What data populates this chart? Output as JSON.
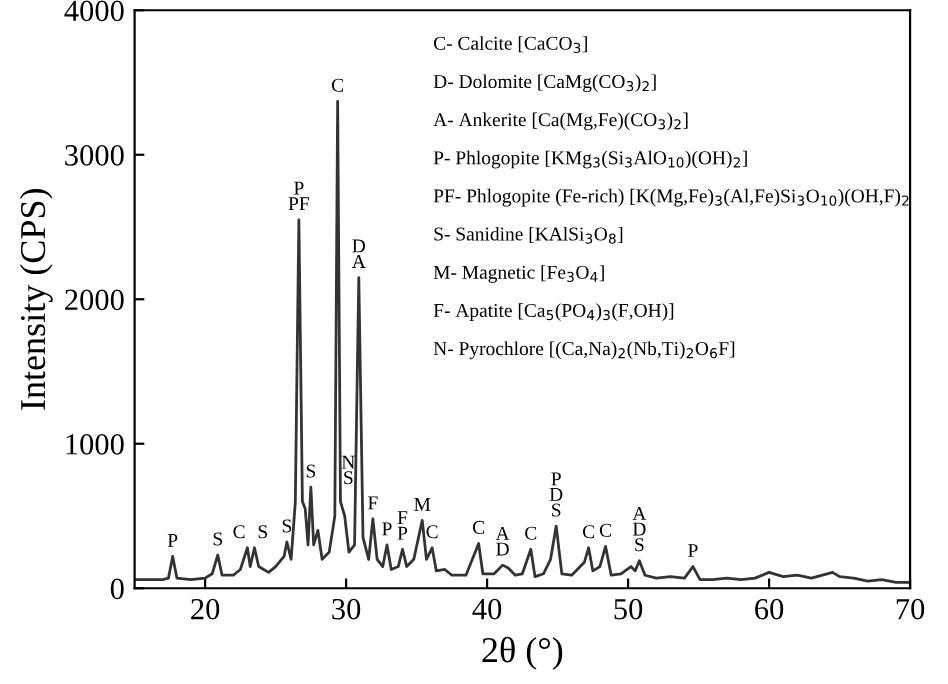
{
  "chart_data": {
    "type": "line",
    "xlabel": "2θ (°)",
    "ylabel": "Intensity (CPS)",
    "xlim": [
      15,
      70
    ],
    "xticks": [
      20,
      30,
      40,
      50,
      60,
      70
    ],
    "ylim": [
      0,
      4000
    ],
    "yticks": [
      0,
      1000,
      2000,
      3000,
      4000
    ],
    "grid": false,
    "legend": false,
    "marker": "none",
    "line_style": "solid",
    "series": [
      {
        "color": "#333333",
        "x": [
          15,
          16,
          17,
          17.4,
          17.7,
          18,
          19,
          20,
          20.5,
          20.9,
          21.2,
          22,
          22.5,
          23.0,
          23.2,
          23.5,
          23.8,
          24.5,
          25,
          25.6,
          25.8,
          26.1,
          26.4,
          26.65,
          26.9,
          27.1,
          27.3,
          27.5,
          27.7,
          28.0,
          28.3,
          28.8,
          29.2,
          29.4,
          29.6,
          29.9,
          30.2,
          30.6,
          30.9,
          31.2,
          31.6,
          31.9,
          32.2,
          32.6,
          32.9,
          33.2,
          33.7,
          34.0,
          34.3,
          34.8,
          35.4,
          35.7,
          36.1,
          36.4,
          37,
          37.5,
          38.5,
          39.4,
          39.7,
          40.5,
          41.1,
          41.5,
          42,
          42.5,
          43.1,
          43.4,
          44,
          44.5,
          44.9,
          45.3,
          46,
          46.9,
          47.2,
          47.5,
          48.0,
          48.4,
          48.8,
          49.5,
          50.2,
          50.5,
          50.8,
          51.2,
          52,
          53,
          54,
          54.6,
          55.1,
          56,
          57,
          58,
          59,
          60,
          61,
          62,
          63,
          64.5,
          65,
          66,
          67,
          68,
          69,
          70
        ],
        "values": [
          60,
          60,
          60,
          70,
          220,
          70,
          60,
          70,
          100,
          230,
          90,
          90,
          130,
          280,
          150,
          280,
          150,
          110,
          150,
          220,
          320,
          200,
          600,
          2550,
          600,
          550,
          300,
          700,
          300,
          400,
          200,
          250,
          500,
          3370,
          600,
          500,
          250,
          300,
          2150,
          350,
          200,
          480,
          200,
          150,
          300,
          130,
          150,
          270,
          150,
          200,
          470,
          200,
          280,
          120,
          130,
          90,
          90,
          310,
          100,
          100,
          160,
          140,
          90,
          100,
          270,
          80,
          100,
          200,
          430,
          100,
          90,
          180,
          280,
          120,
          150,
          290,
          90,
          100,
          150,
          120,
          190,
          90,
          70,
          80,
          70,
          150,
          60,
          60,
          70,
          60,
          70,
          110,
          80,
          90,
          70,
          110,
          80,
          70,
          50,
          60,
          40,
          40
        ]
      }
    ],
    "annotations": [
      {
        "text": "P",
        "x": 17.7,
        "y": 220
      },
      {
        "text": "S",
        "x": 20.9,
        "y": 230
      },
      {
        "text": "C",
        "x": 23.0,
        "y": 280
      },
      {
        "text": "S",
        "x": 23.5,
        "y": 280
      },
      {
        "text": "S",
        "x": 25.8,
        "y": 320
      },
      {
        "text": "P\nPF",
        "x": 26.65,
        "y": 2550
      },
      {
        "text": "S",
        "x": 27.5,
        "y": 700
      },
      {
        "text": "C",
        "x": 29.4,
        "y": 3370
      },
      {
        "text": "N\nS",
        "x": 29.9,
        "y": 500
      },
      {
        "text": "D\nA",
        "x": 30.9,
        "y": 2150
      },
      {
        "text": "F",
        "x": 31.9,
        "y": 480
      },
      {
        "text": "P",
        "x": 32.9,
        "y": 300
      },
      {
        "text": "F\nP",
        "x": 34.0,
        "y": 270
      },
      {
        "text": "M",
        "x": 35.4,
        "y": 470
      },
      {
        "text": "C",
        "x": 36.1,
        "y": 280
      },
      {
        "text": "C",
        "x": 39.4,
        "y": 310
      },
      {
        "text": "A\nD",
        "x": 41.1,
        "y": 160
      },
      {
        "text": "C",
        "x": 43.1,
        "y": 270
      },
      {
        "text": "P\nD\nS",
        "x": 44.9,
        "y": 430
      },
      {
        "text": "C",
        "x": 47.2,
        "y": 280
      },
      {
        "text": "C",
        "x": 48.4,
        "y": 290
      },
      {
        "text": "A\nD\nS",
        "x": 50.8,
        "y": 190
      },
      {
        "text": "P",
        "x": 54.6,
        "y": 150
      },
      "C- Calcite [CaCO$_{3}$]",
      "D- Dolomite [CaMg(CO$_{3}$)$_{2}$]",
      "A- Ankerite [Ca(Mg,Fe)(CO$_{3}$)$_{2}$]",
      "P- Phlogopite [KMg$_{3}$(Si$_{3}$AlO$_{10}$)(OH)$_{2}$]",
      "PF- Phlogopite (Fe-rich) [K(Mg,Fe)$_{3}$(Al,Fe)Si$_{3}$O$_{10}$)(OH,F)$_{2}$",
      "S- Sanidine [KAlSi$_{3}$O$_{8}$]",
      "M- Magnetic [Fe$_{3}$O$_{4}$]",
      "F- Apatite [Ca$_{5}$(PO$_{4}$)$_{3}$(F,OH)]",
      "N- Pyrochlore [(Ca,Na)$_{2}$(Nb,Ti)$_{2}$O$_{6}$F]"
    ]
  }
}
